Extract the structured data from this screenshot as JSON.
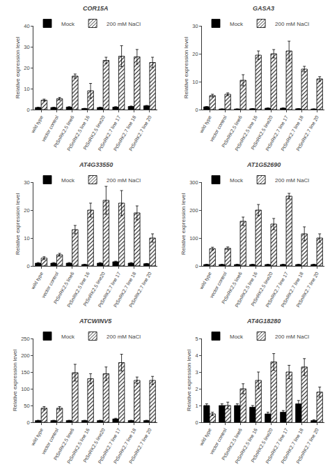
{
  "chart_data": [
    {
      "type": "bar",
      "title": "COR15A",
      "y_label": "Relative expression level",
      "categories": [
        "wild type",
        "vector control",
        "PtSnRK2.5 line6",
        "PtSnRK2.5 line 16",
        "PtSnRK2.5 line20",
        "PtSnRK2.7 line 17",
        "PtSnRK2.7 line 18",
        "PtSnRK2.7 line 20"
      ],
      "series": [
        {
          "name": "Mock",
          "color": "black",
          "values": [
            1.0,
            1.0,
            1.2,
            0.5,
            1.0,
            1.2,
            1.5,
            1.8
          ],
          "errors": [
            0.1,
            0.1,
            0.2,
            0.1,
            0.1,
            0.2,
            0.2,
            0.2
          ]
        },
        {
          "name": "200 mM NaCl",
          "color": "white",
          "values": [
            4.5,
            5.2,
            16.0,
            9.0,
            23.5,
            25.5,
            25.2,
            22.5
          ],
          "errors": [
            0.5,
            0.6,
            1.0,
            3.5,
            1.5,
            5.0,
            3.5,
            2.5
          ]
        }
      ],
      "ylim": [
        0,
        40
      ],
      "yticks": [
        0,
        10,
        20,
        30,
        40
      ],
      "grid": false,
      "legend": "upper left"
    },
    {
      "type": "bar",
      "title": "GASA3",
      "y_label": "Relative expression level",
      "categories": [
        "wild type",
        "vector control",
        "PtSnRK2.5 line6",
        "PtSnRK2.5 line 16",
        "PtSnRK2.5 line20",
        "PtSnRK2.7 line 17",
        "PtSnRK2.7 line 18",
        "PtSnRK2.7 line 20"
      ],
      "series": [
        {
          "name": "Mock",
          "color": "black",
          "values": [
            1.0,
            0.2,
            0.2,
            0.3,
            0.5,
            0.5,
            0.3,
            0.2
          ],
          "errors": [
            0.1,
            0.05,
            0.05,
            0.05,
            0.1,
            0.1,
            0.05,
            0.05
          ]
        },
        {
          "name": "200 mM NaCl",
          "color": "white",
          "values": [
            5.0,
            5.5,
            10.5,
            19.5,
            20.0,
            21.0,
            14.5,
            11.0
          ],
          "errors": [
            0.5,
            0.5,
            2.0,
            1.5,
            1.5,
            3.5,
            1.0,
            0.8
          ]
        }
      ],
      "ylim": [
        0,
        30
      ],
      "yticks": [
        0,
        10,
        20,
        30
      ],
      "grid": false,
      "legend": "upper left"
    },
    {
      "type": "bar",
      "title": "AT4G33550",
      "y_label": "Relative expression level",
      "categories": [
        "wild type",
        "vector control",
        "PtSnRK2.5 line6",
        "PtSnRK2.5 line 16",
        "PtSnRK2.5 line20",
        "PtSnRK2.7 line 17",
        "PtSnRK2.7 line 18",
        "PtSnRK2.7 line 20"
      ],
      "series": [
        {
          "name": "Mock",
          "color": "black",
          "values": [
            1.0,
            1.0,
            1.0,
            0.5,
            1.0,
            1.5,
            1.0,
            0.8
          ],
          "errors": [
            0.2,
            0.2,
            0.2,
            0.1,
            0.2,
            0.2,
            0.2,
            0.1
          ]
        },
        {
          "name": "200 mM NaCl",
          "color": "white",
          "values": [
            2.8,
            4.0,
            13.0,
            20.0,
            23.5,
            22.5,
            19.0,
            10.0
          ],
          "errors": [
            0.5,
            0.5,
            1.5,
            2.5,
            5.0,
            4.5,
            2.5,
            1.5
          ]
        }
      ],
      "ylim": [
        0,
        30
      ],
      "yticks": [
        0,
        10,
        20,
        30
      ],
      "grid": false,
      "legend": "upper left"
    },
    {
      "type": "bar",
      "title": "AT1G52690",
      "y_label": "Relative expression level",
      "categories": [
        "wild type",
        "vector control",
        "PtSnRK2.5 line6",
        "PtSnRK2.5 line 16",
        "PtSnRK2.5 line20",
        "PtSnRK2.7 line 17",
        "PtSnRK2.7 line 18",
        "PtSnRK2.7 line 20"
      ],
      "series": [
        {
          "name": "Mock",
          "color": "black",
          "values": [
            5.0,
            5.0,
            5.0,
            5.0,
            5.0,
            5.0,
            5.0,
            5.0
          ],
          "errors": [
            1.0,
            1.0,
            1.0,
            1.0,
            1.0,
            1.0,
            1.0,
            1.0
          ]
        },
        {
          "name": "200 mM NaCl",
          "color": "white",
          "values": [
            62.0,
            63.0,
            160.0,
            200.0,
            150.0,
            250.0,
            115.0,
            100.0
          ],
          "errors": [
            5.0,
            5.0,
            15.0,
            20.0,
            20.0,
            10.0,
            25.0,
            15.0
          ]
        }
      ],
      "ylim": [
        0,
        300
      ],
      "yticks": [
        0,
        100,
        200,
        300
      ],
      "grid": false,
      "legend": "upper left"
    },
    {
      "type": "bar",
      "title": "ATCWINV5",
      "y_label": "Relative expression level",
      "categories": [
        "wild type",
        "vector control",
        "PtSnRK2.5 line6",
        "PtSnRK2.5 line 16",
        "PtSnRK2.5 line20",
        "PtSnRK2.7 line 17",
        "PtSnRK2.7 line 18",
        "PtSnRK2.7 line 20"
      ],
      "series": [
        {
          "name": "Mock",
          "color": "black",
          "values": [
            5.0,
            5.0,
            5.0,
            5.0,
            5.0,
            10.0,
            5.0,
            5.0
          ],
          "errors": [
            1.0,
            1.0,
            1.0,
            1.0,
            1.0,
            2.0,
            1.0,
            1.0
          ]
        },
        {
          "name": "200 mM NaCl",
          "color": "white",
          "values": [
            42.0,
            42.0,
            148.0,
            130.0,
            145.0,
            178.0,
            125.0,
            125.0
          ],
          "errors": [
            5.0,
            5.0,
            25.0,
            15.0,
            20.0,
            25.0,
            10.0,
            12.0
          ]
        }
      ],
      "ylim": [
        0,
        250
      ],
      "yticks": [
        0,
        50,
        100,
        150,
        200,
        250
      ],
      "grid": false,
      "legend": "upper left"
    },
    {
      "type": "bar",
      "title": "AT4G18280",
      "y_label": "Relative expression level",
      "categories": [
        "wild type",
        "vector control",
        "PtSnRK2.5 line6",
        "PtSnRK2.5 line 16",
        "PtSnRK2.5 line20",
        "PtSnRK2.7 line 17",
        "PtSnRK2.7 line 18",
        "PtSnRK2.7 line 20"
      ],
      "series": [
        {
          "name": "Mock",
          "color": "black",
          "values": [
            1.0,
            1.0,
            1.0,
            0.9,
            0.5,
            0.6,
            1.1,
            0.1
          ],
          "errors": [
            0.1,
            0.1,
            0.1,
            0.1,
            0.1,
            0.1,
            0.2,
            0.05
          ]
        },
        {
          "name": "200 mM NaCl",
          "color": "white",
          "values": [
            0.5,
            1.0,
            2.0,
            2.5,
            3.6,
            3.0,
            3.3,
            1.8
          ],
          "errors": [
            0.1,
            0.2,
            0.3,
            0.5,
            0.5,
            0.4,
            0.5,
            0.3
          ]
        }
      ],
      "ylim": [
        0,
        5
      ],
      "yticks": [
        0,
        1,
        2,
        3,
        4,
        5
      ],
      "grid": false,
      "legend": "upper left"
    }
  ]
}
